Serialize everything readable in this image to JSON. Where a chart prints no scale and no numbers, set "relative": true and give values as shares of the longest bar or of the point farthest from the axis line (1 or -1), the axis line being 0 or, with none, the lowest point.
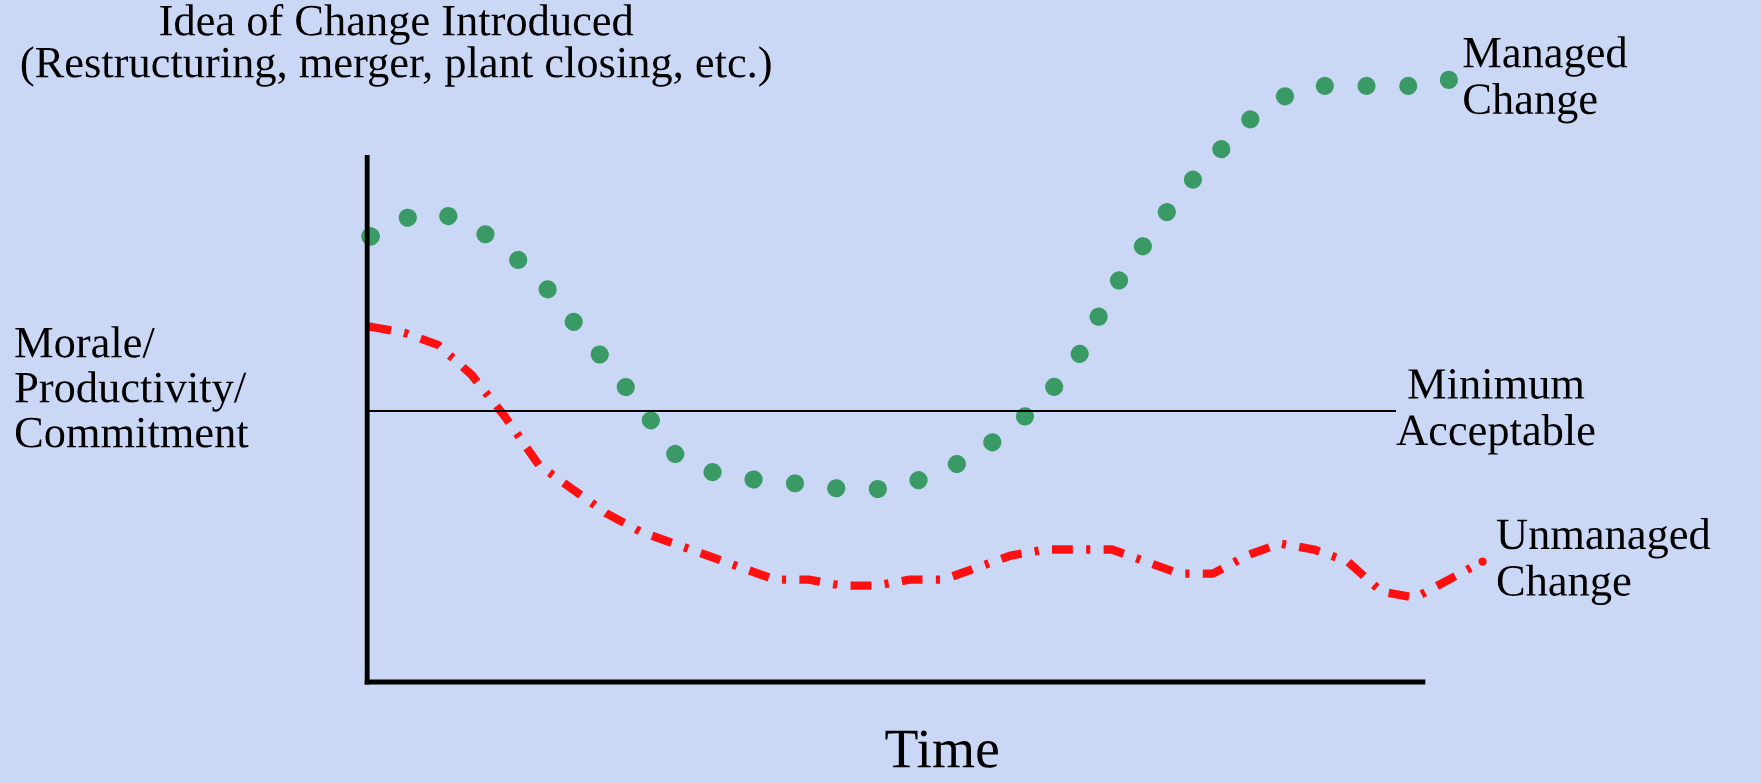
{
  "chart_data": {
    "type": "line",
    "relative": true,
    "title": "Idea of Change Introduced\n(Restructuring, merger, plant closing, etc.)",
    "xlabel": "Time",
    "ylabel": "Morale/\nProductivity/\nCommitment",
    "categories": [
      null,
      null,
      null,
      null,
      null,
      null,
      null,
      null,
      null,
      null,
      null,
      null,
      null,
      null,
      null,
      null,
      null,
      null,
      null,
      null,
      null,
      null,
      null,
      null,
      null,
      null,
      null,
      null,
      null,
      null,
      null,
      null,
      null,
      null
    ],
    "series": [
      {
        "name": "Managed\nChange",
        "color": "#3a9a66",
        "line_style": "dotted",
        "values": [
          0.74,
          0.77,
          0.78,
          0.76,
          0.72,
          0.67,
          0.6,
          0.53,
          0.46,
          0.38,
          0.35,
          0.34,
          0.33,
          0.33,
          0.32,
          0.32,
          0.33,
          0.35,
          0.38,
          0.42,
          0.47,
          0.54,
          0.65,
          0.73,
          0.81,
          0.87,
          0.93,
          0.97,
          0.99,
          0.99,
          0.99,
          0.99,
          1.0,
          null
        ]
      },
      {
        "name": "Unmanaged\nChange",
        "color": "#ff1010",
        "line_style": "dashed",
        "values": [
          0.59,
          0.58,
          0.56,
          0.51,
          0.44,
          0.36,
          0.32,
          0.28,
          0.25,
          0.23,
          0.21,
          0.19,
          0.17,
          0.17,
          0.16,
          0.16,
          0.17,
          0.17,
          0.19,
          0.21,
          0.22,
          0.22,
          0.22,
          0.2,
          0.18,
          0.18,
          0.21,
          0.23,
          0.22,
          0.2,
          0.15,
          0.14,
          0.17,
          0.2
        ]
      }
    ],
    "ref_lines": [
      {
        "axis": "y",
        "value": 0.45,
        "label": "Minimum\nAcceptable",
        "color": "#000000"
      }
    ],
    "grid": false,
    "legend": false,
    "tick_labels": false
  }
}
